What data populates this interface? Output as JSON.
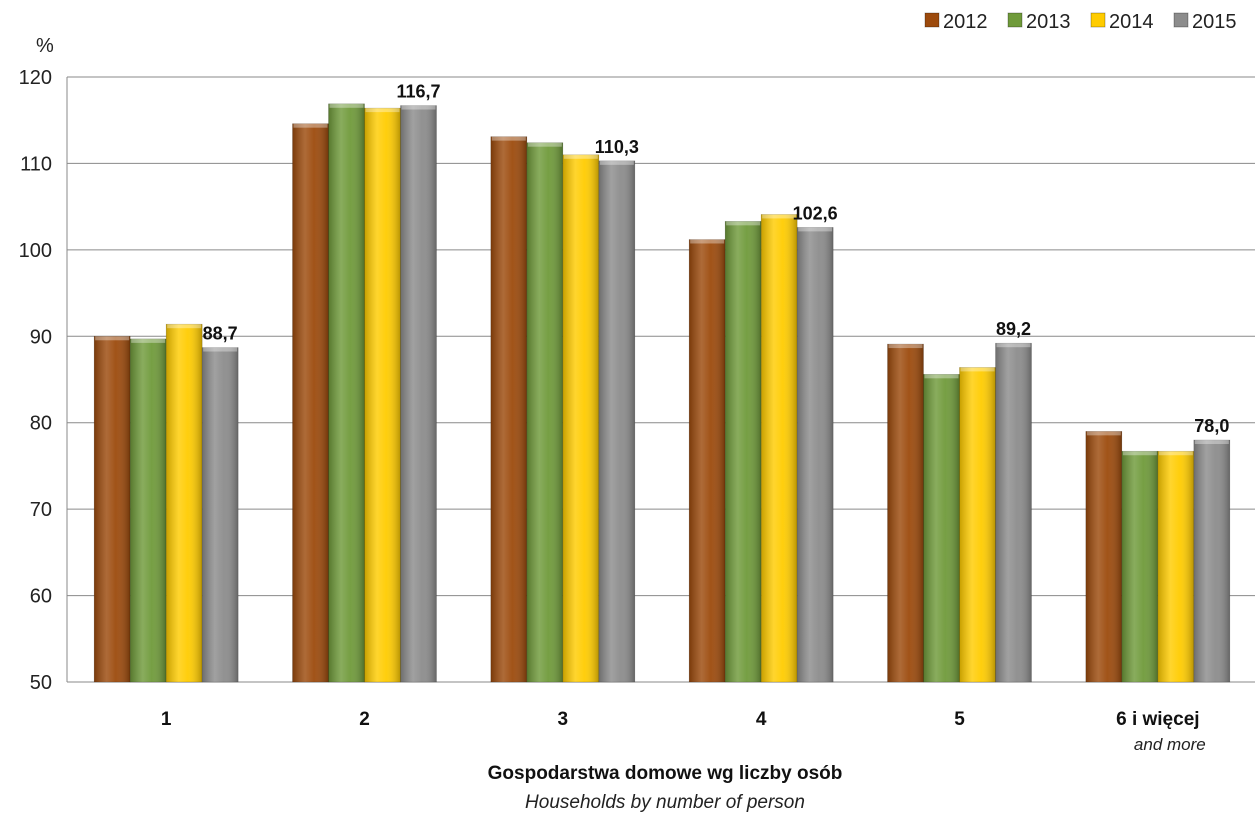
{
  "chart_data": {
    "type": "bar",
    "unit_label": "%",
    "categories": [
      "1",
      "2",
      "3",
      "4",
      "5",
      "6 i więcej"
    ],
    "category_subtitles": [
      "",
      "",
      "",
      "",
      "",
      "and more"
    ],
    "series": [
      {
        "name": "2012",
        "color": "#9c4a0c",
        "values": [
          90.0,
          114.6,
          113.1,
          101.2,
          89.1,
          79.0
        ]
      },
      {
        "name": "2013",
        "color": "#6f9a3a",
        "values": [
          89.7,
          116.9,
          112.4,
          103.3,
          85.6,
          76.7
        ]
      },
      {
        "name": "2014",
        "color": "#ffcc00",
        "values": [
          91.4,
          116.4,
          111.0,
          104.1,
          86.4,
          76.7
        ]
      },
      {
        "name": "2015",
        "color": "#8c8c8c",
        "values": [
          88.7,
          116.7,
          110.3,
          102.6,
          89.2,
          78.0
        ]
      }
    ],
    "data_labels": {
      "series": "2015",
      "values": [
        "88,7",
        "116,7",
        "110,3",
        "102,6",
        "89,2",
        "78,0"
      ]
    },
    "xlabel": "Gospodarstwa  domowe wg liczby osób",
    "xlabel_en": "Households by number of person",
    "ylim": [
      50,
      120
    ],
    "yticks": [
      50,
      60,
      70,
      80,
      90,
      100,
      110,
      120
    ],
    "grid": true,
    "legend_position": "top-right"
  }
}
